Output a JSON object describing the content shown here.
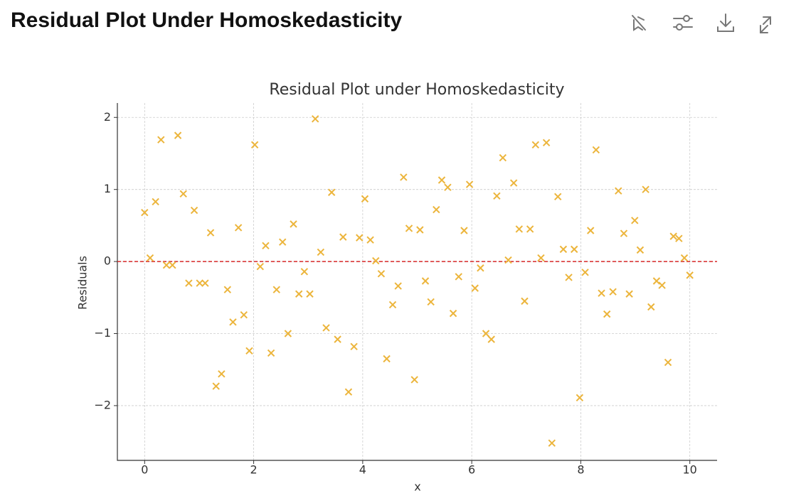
{
  "header": {
    "title": "Residual Plot Under Homoskedasticity"
  },
  "chart_data": {
    "type": "scatter",
    "title": "Residual Plot under Homoskedasticity",
    "x_label": "x",
    "y_label": "Residuals",
    "series": [
      {
        "name": "Residuals",
        "color": "#ecb53c",
        "marker": "x",
        "x": [
          0,
          0.1,
          0.2,
          0.3,
          0.4,
          0.51,
          0.61,
          0.71,
          0.81,
          0.91,
          1.01,
          1.11,
          1.21,
          1.31,
          1.41,
          1.52,
          1.62,
          1.72,
          1.82,
          1.92,
          2.02,
          2.12,
          2.22,
          2.32,
          2.42,
          2.53,
          2.63,
          2.73,
          2.83,
          2.93,
          3.03,
          3.13,
          3.23,
          3.33,
          3.43,
          3.54,
          3.64,
          3.74,
          3.84,
          3.94,
          4.04,
          4.14,
          4.24,
          4.34,
          4.44,
          4.55,
          4.65,
          4.75,
          4.85,
          4.95,
          5.05,
          5.15,
          5.25,
          5.35,
          5.45,
          5.56,
          5.66,
          5.76,
          5.86,
          5.96,
          6.06,
          6.16,
          6.26,
          6.36,
          6.46,
          6.57,
          6.67,
          6.77,
          6.87,
          6.97,
          7.07,
          7.17,
          7.27,
          7.37,
          7.47,
          7.58,
          7.68,
          7.78,
          7.88,
          7.98,
          8.08,
          8.18,
          8.28,
          8.38,
          8.48,
          8.59,
          8.69,
          8.79,
          8.89,
          8.99,
          9.09,
          9.19,
          9.29,
          9.39,
          9.49,
          9.6,
          9.7,
          9.8,
          9.9,
          10.0
        ],
        "values": [
          0.68,
          0.05,
          0.83,
          1.69,
          -0.05,
          -0.05,
          1.75,
          0.94,
          -0.3,
          0.71,
          -0.3,
          -0.3,
          0.4,
          -1.73,
          -1.56,
          -0.39,
          -0.84,
          0.47,
          -0.74,
          -1.24,
          1.62,
          -0.07,
          0.22,
          -1.27,
          -0.39,
          0.27,
          -1.0,
          0.52,
          -0.45,
          -0.14,
          -0.45,
          1.98,
          0.13,
          -0.92,
          0.96,
          -1.08,
          0.34,
          -1.81,
          -1.18,
          0.33,
          0.87,
          0.3,
          0.01,
          -0.17,
          -1.35,
          -0.6,
          -0.34,
          1.17,
          0.46,
          -1.64,
          0.44,
          -0.27,
          -0.56,
          0.72,
          1.13,
          1.03,
          -0.72,
          -0.21,
          0.43,
          1.07,
          -0.37,
          -0.09,
          -1.0,
          -1.08,
          0.91,
          1.44,
          0.02,
          1.09,
          0.45,
          -0.55,
          0.45,
          1.62,
          0.05,
          1.65,
          -2.52,
          0.9,
          0.17,
          -0.22,
          0.17,
          -1.89,
          -0.15,
          0.43,
          1.55,
          -0.44,
          -0.73,
          -0.42,
          0.98,
          0.39,
          -0.45,
          0.57,
          0.16,
          1.0,
          -0.63,
          -0.27,
          -0.33,
          -1.4,
          0.35,
          0.32,
          0.05,
          -0.19
        ]
      }
    ],
    "hline": {
      "value": 0,
      "color": "#d62728"
    },
    "xlim": [
      -0.5,
      10.5
    ],
    "ylim": [
      -2.76,
      2.2
    ],
    "xticks": [
      0,
      2,
      4,
      6,
      8,
      10
    ],
    "yticks": [
      {
        "value": -2,
        "label": "−2"
      },
      {
        "value": -1,
        "label": "−1"
      },
      0,
      1,
      2
    ],
    "grid": true
  }
}
